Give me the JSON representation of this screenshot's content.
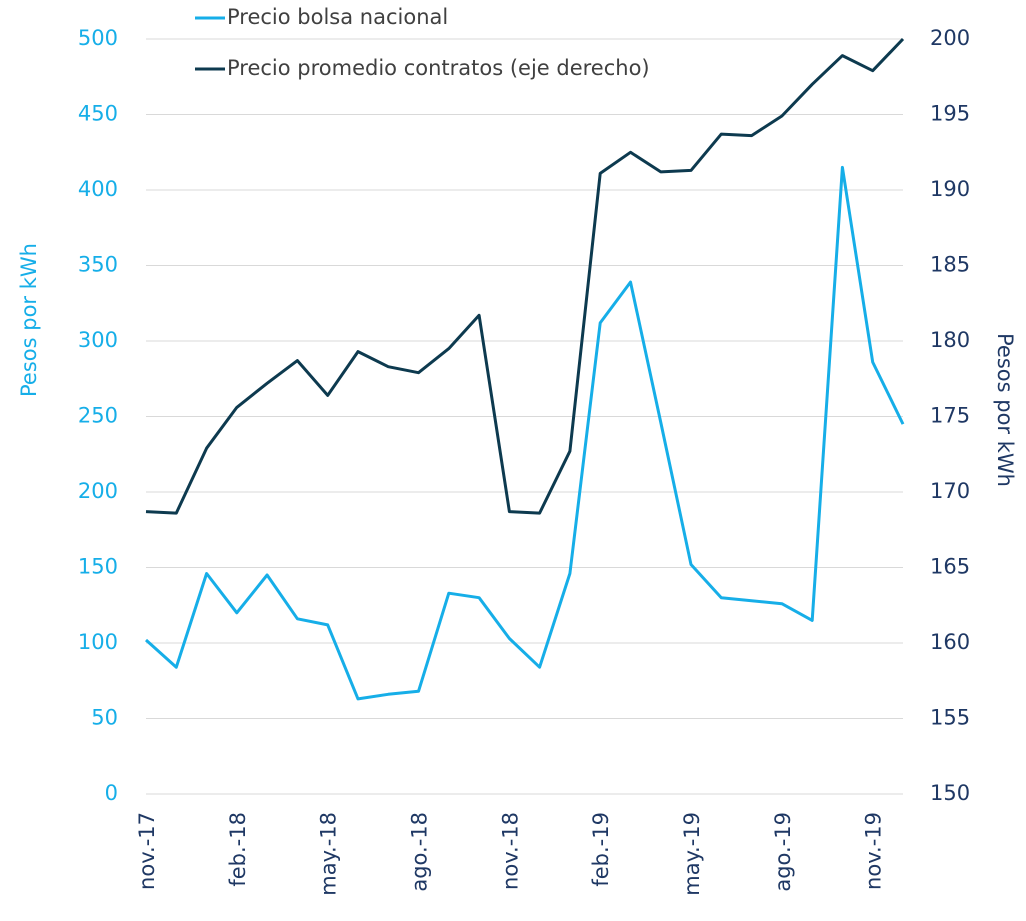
{
  "chart_data": {
    "type": "line",
    "categories": [
      "nov.-17",
      null,
      null,
      "feb.-18",
      null,
      null,
      "may.-18",
      null,
      null,
      "ago.-18",
      null,
      null,
      "nov.-18",
      null,
      null,
      "feb.-19",
      null,
      null,
      "may.-19",
      null,
      null,
      "ago.-19",
      null,
      null,
      "nov.-19",
      null
    ],
    "series": [
      {
        "name": "Precio bolsa nacional",
        "color": "#16aee8",
        "axis": "y",
        "values": [
          102,
          84,
          146,
          120,
          145,
          116,
          112,
          63,
          66,
          68,
          133,
          130,
          103,
          84,
          146,
          312,
          339,
          246,
          152,
          130,
          128,
          126,
          115,
          415,
          286,
          245
        ]
      },
      {
        "name": "Precio promedio contratos (eje derecho)",
        "color": "#0d3a4f",
        "axis": "y2",
        "values": [
          168.7,
          168.6,
          172.9,
          175.6,
          177.2,
          178.7,
          176.4,
          179.3,
          178.3,
          177.9,
          179.5,
          181.7,
          168.7,
          168.6,
          172.7,
          191.1,
          192.5,
          191.2,
          191.3,
          193.7,
          193.6,
          194.9,
          197.0,
          198.9,
          197.9,
          200
        ]
      }
    ],
    "ylabel": "Pesos por kWh",
    "y2label": "Pesos por kWh",
    "ylim": [
      0,
      500
    ],
    "yticks": [
      0,
      50,
      100,
      150,
      200,
      250,
      300,
      350,
      400,
      450,
      500
    ],
    "y2lim": [
      150,
      200
    ],
    "y2ticks": [
      150,
      155,
      160,
      165,
      170,
      175,
      180,
      185,
      190,
      195,
      200
    ],
    "grid": true,
    "legend": "top"
  }
}
